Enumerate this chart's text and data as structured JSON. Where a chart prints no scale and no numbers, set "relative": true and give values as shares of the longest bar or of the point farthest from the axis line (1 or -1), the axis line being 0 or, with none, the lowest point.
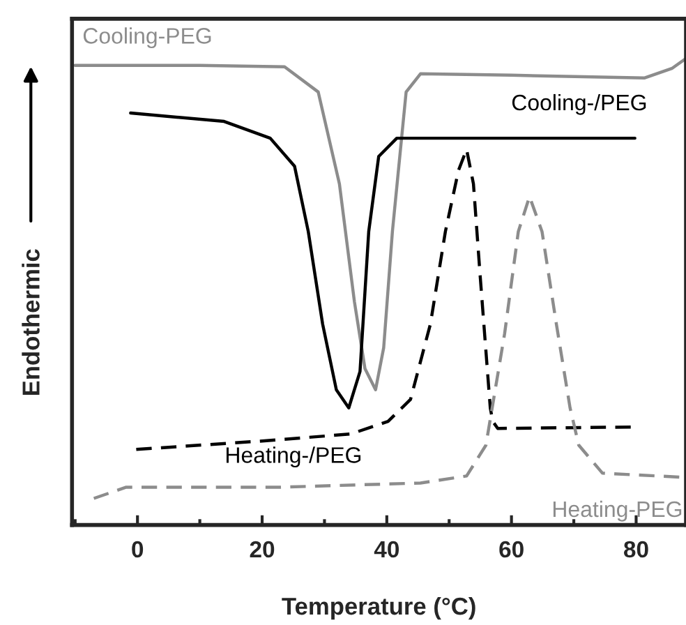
{
  "chart_data": {
    "type": "line",
    "relative": true,
    "xlabel": "Temperature (°C)",
    "ylabel": "Endothermic",
    "xlim": [
      -10.5,
      88
    ],
    "xticks": [
      0,
      20,
      40,
      60,
      80
    ],
    "grid": false,
    "legend": false,
    "marker": "none",
    "series": [
      {
        "name": "Cooling-PEG",
        "color": "#8c8c8c",
        "line_style": "solid",
        "x": [
          -10,
          10,
          23.6,
          29,
          32.4,
          34.8,
          36.5,
          38.2,
          39.5,
          40.9,
          43.1,
          45.4,
          60,
          81.3,
          85.8,
          88
        ],
        "values": [
          0.985,
          0.985,
          0.982,
          0.928,
          0.731,
          0.479,
          0.335,
          0.29,
          0.38,
          0.629,
          0.928,
          0.967,
          0.964,
          0.958,
          0.979,
          1.0
        ]
      },
      {
        "name": "Cooling-/PEG",
        "color": "#000000",
        "line_style": "solid",
        "x": [
          -1.1,
          13.9,
          21.3,
          25.2,
          27.4,
          29.7,
          31.9,
          33.9,
          35.7,
          37.1,
          38.7,
          41.6,
          79.8
        ],
        "values": [
          0.883,
          0.865,
          0.829,
          0.769,
          0.629,
          0.431,
          0.29,
          0.251,
          0.329,
          0.629,
          0.79,
          0.829,
          0.829
        ]
      },
      {
        "name": "Heating-/PEG",
        "color": "#000000",
        "line_style": "dashed",
        "x": [
          -0.2,
          20,
          34.2,
          40.2,
          43.8,
          47,
          49.4,
          51.5,
          52.8,
          53.9,
          55,
          56.6,
          57,
          57.8,
          79.8
        ],
        "values": [
          0.162,
          0.18,
          0.195,
          0.222,
          0.269,
          0.431,
          0.629,
          0.76,
          0.805,
          0.731,
          0.53,
          0.251,
          0.222,
          0.207,
          0.21
        ]
      },
      {
        "name": "Heating-PEG",
        "color": "#8c8c8c",
        "line_style": "dashed",
        "x": [
          -7,
          -1.8,
          22.9,
          45.4,
          52.8,
          55.9,
          58.9,
          61.1,
          62.9,
          64.9,
          67.2,
          69.4,
          70.8,
          74.6,
          88
        ],
        "values": [
          0.057,
          0.081,
          0.081,
          0.09,
          0.105,
          0.171,
          0.41,
          0.629,
          0.704,
          0.629,
          0.431,
          0.251,
          0.171,
          0.111,
          0.102
        ]
      }
    ]
  }
}
